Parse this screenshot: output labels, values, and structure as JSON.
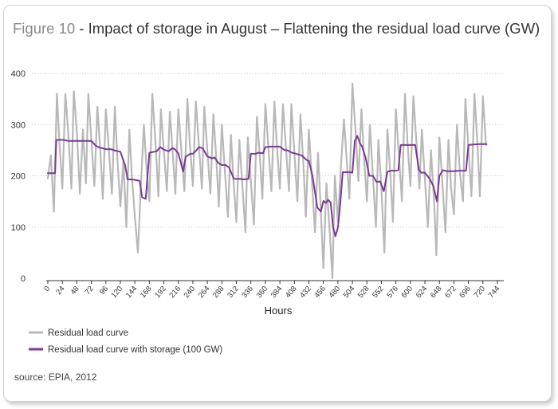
{
  "figure": {
    "label": "Figure 10",
    "title": " - Impact of storage in August – Flattening the residual load curve (GW)",
    "source_prefix": "source:",
    "source_text": " EPIA, 2012"
  },
  "colors": {
    "residual": "#b8b8b8",
    "storage": "#7b3a93",
    "axis": "#333333",
    "card_border": "#d0d0d0"
  },
  "chart_data": {
    "type": "line",
    "xlabel": "Hours",
    "ylabel": "",
    "xlim": [
      0,
      744
    ],
    "ylim": [
      0,
      400
    ],
    "xticks": [
      0,
      24,
      48,
      72,
      96,
      120,
      144,
      168,
      192,
      216,
      240,
      264,
      288,
      312,
      336,
      360,
      384,
      408,
      432,
      456,
      480,
      504,
      528,
      552,
      576,
      600,
      624,
      648,
      672,
      696,
      720,
      744
    ],
    "yticks": [
      0,
      100,
      200,
      300,
      400
    ],
    "legend_position": "bottom-left",
    "series": [
      {
        "name": "Residual load curve",
        "color": "#b8b8b8",
        "x": [
          0,
          5,
          10,
          15,
          19,
          24,
          29,
          34,
          39,
          43,
          48,
          53,
          58,
          63,
          67,
          72,
          77,
          82,
          87,
          91,
          96,
          101,
          106,
          111,
          115,
          120,
          125,
          130,
          135,
          139,
          144,
          149,
          154,
          159,
          163,
          168,
          173,
          178,
          183,
          187,
          192,
          197,
          202,
          207,
          211,
          216,
          221,
          226,
          231,
          235,
          240,
          245,
          250,
          255,
          259,
          264,
          269,
          274,
          279,
          283,
          288,
          293,
          298,
          303,
          307,
          312,
          317,
          322,
          327,
          331,
          336,
          341,
          346,
          351,
          355,
          360,
          365,
          370,
          375,
          379,
          384,
          389,
          394,
          399,
          403,
          408,
          413,
          418,
          423,
          427,
          432,
          437,
          442,
          447,
          451,
          456,
          461,
          466,
          471,
          475,
          480,
          485,
          490,
          495,
          499,
          504,
          509,
          514,
          519,
          523,
          528,
          533,
          538,
          543,
          547,
          552,
          557,
          562,
          567,
          571,
          576,
          581,
          586,
          591,
          595,
          600,
          605,
          610,
          615,
          619,
          624,
          629,
          634,
          639,
          643,
          648,
          653,
          658,
          663,
          667,
          672,
          677,
          682,
          687,
          691,
          696,
          701,
          706,
          711,
          715,
          720,
          725
        ],
        "y": [
          195,
          240,
          130,
          360,
          270,
          175,
          360,
          280,
          175,
          365,
          285,
          165,
          290,
          185,
          360,
          270,
          180,
          335,
          245,
          155,
          330,
          250,
          165,
          335,
          235,
          140,
          230,
          100,
          290,
          200,
          120,
          50,
          180,
          300,
          220,
          150,
          360,
          270,
          160,
          330,
          250,
          170,
          325,
          240,
          165,
          330,
          250,
          170,
          350,
          265,
          180,
          345,
          260,
          175,
          335,
          250,
          165,
          320,
          230,
          140,
          300,
          210,
          120,
          280,
          195,
          110,
          270,
          180,
          90,
          275,
          190,
          105,
          315,
          235,
          155,
          340,
          255,
          170,
          345,
          260,
          175,
          340,
          255,
          170,
          340,
          245,
          150,
          320,
          220,
          120,
          290,
          190,
          90,
          245,
          150,
          20,
          185,
          100,
          0,
          200,
          110,
          220,
          310,
          225,
          155,
          380,
          290,
          190,
          330,
          240,
          150,
          300,
          200,
          100,
          270,
          175,
          50,
          290,
          200,
          110,
          330,
          240,
          150,
          360,
          270,
          180,
          355,
          265,
          175,
          290,
          195,
          100,
          250,
          155,
          45,
          275,
          185,
          90,
          270,
          180,
          125,
          300,
          205,
          150,
          350,
          255,
          160,
          360,
          260,
          160,
          355,
          260
        ]
      },
      {
        "name": "Residual load curve with storage (100 GW)",
        "color": "#7b3a93",
        "x": [
          0,
          12,
          14,
          26,
          34,
          48,
          60,
          72,
          80,
          86,
          96,
          104,
          112,
          120,
          128,
          132,
          138,
          144,
          152,
          156,
          162,
          168,
          176,
          180,
          186,
          192,
          200,
          206,
          210,
          216,
          224,
          228,
          236,
          240,
          246,
          250,
          256,
          264,
          272,
          276,
          282,
          288,
          294,
          300,
          308,
          312,
          318,
          324,
          332,
          336,
          344,
          348,
          356,
          360,
          368,
          372,
          380,
          384,
          392,
          396,
          404,
          408,
          416,
          420,
          428,
          432,
          438,
          446,
          452,
          456,
          460,
          464,
          468,
          472,
          476,
          480,
          484,
          488,
          492,
          496,
          500,
          504,
          508,
          512,
          516,
          520,
          526,
          532,
          538,
          544,
          550,
          556,
          562,
          568,
          574,
          580,
          584,
          590,
          600,
          608,
          614,
          618,
          624,
          632,
          638,
          644,
          648,
          654,
          660,
          666,
          672,
          680,
          686,
          692,
          696,
          704,
          714,
          726
        ],
        "y": [
          205,
          205,
          270,
          270,
          268,
          268,
          268,
          268,
          258,
          255,
          252,
          252,
          249,
          247,
          220,
          193,
          193,
          192,
          190,
          158,
          155,
          245,
          247,
          248,
          256,
          251,
          248,
          254,
          252,
          244,
          208,
          237,
          243,
          243,
          250,
          256,
          254,
          238,
          234,
          236,
          225,
          221,
          221,
          216,
          194,
          194,
          194,
          193,
          194,
          243,
          243,
          245,
          244,
          256,
          257,
          257,
          257,
          257,
          250,
          250,
          245,
          244,
          241,
          240,
          231,
          229,
          200,
          138,
          130,
          151,
          147,
          153,
          148,
          100,
          82,
          99,
          146,
          207,
          207,
          207,
          207,
          206,
          268,
          278,
          265,
          257,
          235,
          200,
          200,
          188,
          189,
          170,
          208,
          210,
          210,
          211,
          260,
          260,
          260,
          260,
          212,
          206,
          206,
          194,
          180,
          150,
          200,
          211,
          209,
          209,
          209,
          210,
          210,
          210,
          260,
          261,
          262,
          262
        ]
      }
    ]
  }
}
